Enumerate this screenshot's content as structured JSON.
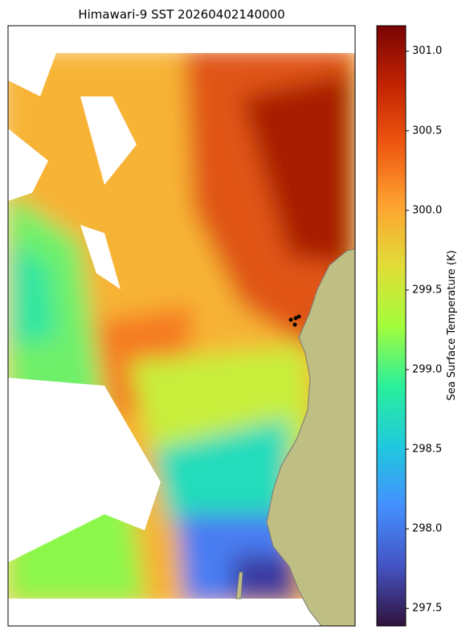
{
  "map": {
    "title": "Himawari-9 SST 20260402140000",
    "colorbar": {
      "label": "Sea Surface Temperature (K)",
      "clim": [
        297.39,
        301.16
      ],
      "ticks": [
        {
          "value": 297.5,
          "label": "297.5"
        },
        {
          "value": 298,
          "label": "298.0"
        },
        {
          "value": 298.5,
          "label": "298.5"
        },
        {
          "value": 299,
          "label": "299.0"
        },
        {
          "value": 299.5,
          "label": "299.5"
        },
        {
          "value": 300,
          "label": "300.0"
        },
        {
          "value": 300.5,
          "label": "300.5"
        },
        {
          "value": 301,
          "label": "301.0"
        }
      ]
    }
  }
}
